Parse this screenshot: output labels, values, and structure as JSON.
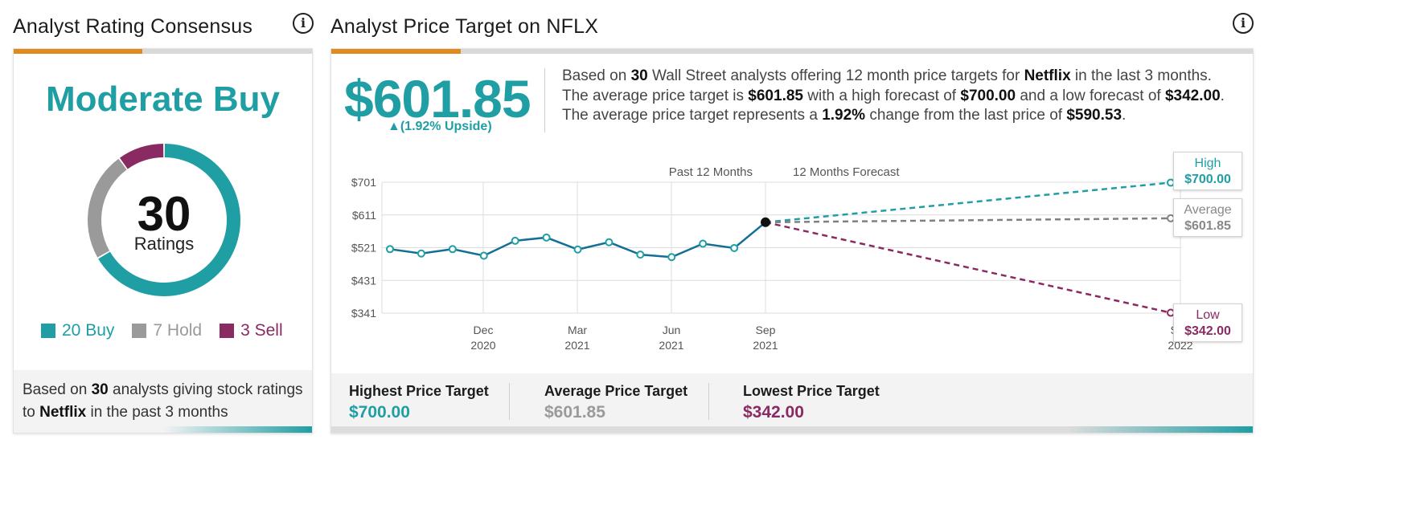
{
  "left_panel": {
    "title": "Analyst Rating Consensus",
    "rating": "Moderate Buy",
    "total": "30",
    "total_label": "Ratings",
    "legend": [
      {
        "label": "20 Buy",
        "value": 20,
        "color": "#1f9ea4"
      },
      {
        "label": "7 Hold",
        "value": 7,
        "color": "#9a9a9a"
      },
      {
        "label": "3 Sell",
        "value": 3,
        "color": "#8a2a63"
      }
    ],
    "footer": {
      "pre": "Based on ",
      "count": "30",
      "mid": " analysts giving stock ratings to ",
      "company": "Netflix",
      "post": "  in the past 3 months"
    }
  },
  "right_panel": {
    "title": "Analyst Price Target on NFLX",
    "big_price": "$601.85",
    "upside": "▲(1.92% Upside)",
    "summary": {
      "s1": "Based on ",
      "count": "30",
      "s2": " Wall Street analysts offering 12 month price targets for ",
      "company": "Netflix",
      "s3": " in the last 3 months. The average price target is ",
      "avg": "$601.85",
      "s4": " with a high forecast of ",
      "high": "$700.00",
      "s5": " and a low forecast of ",
      "low": "$342.00",
      "s6": ". The average price target represents a ",
      "pct": "1.92%",
      "s7": " change from the last price of ",
      "last": "$590.53",
      "s8": "."
    },
    "targets": {
      "highest": {
        "title": "Highest Price Target",
        "value": "$700.00"
      },
      "average": {
        "title": "Average Price Target",
        "value": "$601.85"
      },
      "lowest": {
        "title": "Lowest Price Target",
        "value": "$342.00"
      }
    },
    "callouts": {
      "high": {
        "label": "High",
        "value": "$700.00"
      },
      "average": {
        "label": "Average",
        "value": "$601.85"
      },
      "low": {
        "label": "Low",
        "value": "$342.00"
      }
    }
  },
  "chart_data": [
    {
      "type": "pie",
      "categories": [
        "Buy",
        "Hold",
        "Sell"
      ],
      "values": [
        20,
        7,
        3
      ],
      "colors": [
        "#1f9ea4",
        "#9a9a9a",
        "#8a2a63"
      ]
    },
    {
      "type": "line",
      "section_labels": [
        "Past 12 Months",
        "12 Months Forecast"
      ],
      "y_ticks": [
        "$701",
        "$611",
        "$521",
        "$431",
        "$341"
      ],
      "y_tick_values": [
        701,
        611,
        521,
        431,
        341
      ],
      "ylim": [
        341,
        701
      ],
      "x_ticks": [
        {
          "month": "Dec",
          "year": "2020"
        },
        {
          "month": "Mar",
          "year": "2021"
        },
        {
          "month": "Jun",
          "year": "2021"
        },
        {
          "month": "Sep",
          "year": "2021"
        },
        {
          "month": "Sep",
          "year": "2022"
        }
      ],
      "history": {
        "x": [
          "2020-09",
          "2020-10",
          "2020-11",
          "2020-12",
          "2021-01",
          "2021-02",
          "2021-03",
          "2021-04",
          "2021-05",
          "2021-06",
          "2021-07",
          "2021-08",
          "2021-09"
        ],
        "values": [
          517,
          505,
          517,
          499,
          540,
          549,
          516,
          536,
          502,
          495,
          532,
          520,
          591
        ]
      },
      "forecast": [
        {
          "name": "High",
          "value": 700
        },
        {
          "name": "Average",
          "value": 601.85
        },
        {
          "name": "Low",
          "value": 342
        }
      ],
      "series_colors": {
        "history": "#136f96",
        "high": "#1f9ea4",
        "average": "#808080",
        "low": "#8a2a63"
      }
    }
  ]
}
